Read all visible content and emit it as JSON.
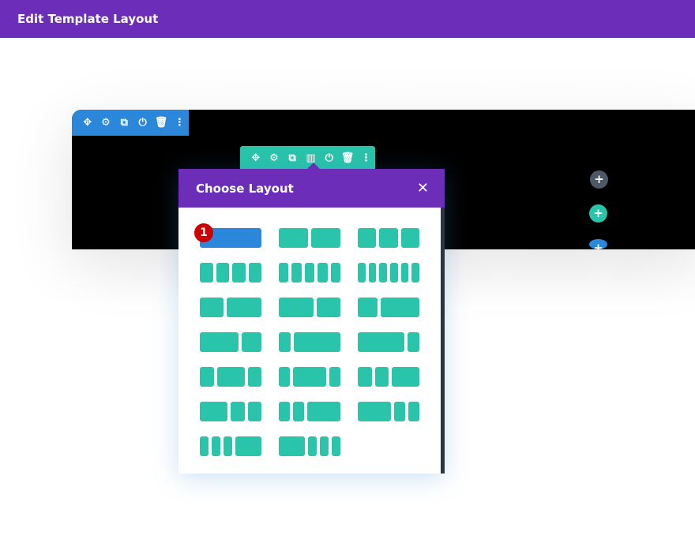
{
  "header": {
    "title": "Edit Template Layout"
  },
  "section_toolbar": {
    "icons": [
      "✥",
      "⚙",
      "⧉",
      "⏻",
      "🗑",
      "⋮"
    ],
    "color": "#2b87da"
  },
  "row_toolbar": {
    "icons": [
      "✥",
      "⚙",
      "⧉",
      "▥",
      "⏻",
      "🗑",
      "⋮"
    ],
    "color": "#29c4a9"
  },
  "modal": {
    "title": "Choose Layout",
    "close": "✕",
    "selected_index": 0,
    "badge": "1",
    "layouts": [
      [
        1
      ],
      [
        1,
        1
      ],
      [
        1,
        1,
        1
      ],
      [
        1,
        1,
        1,
        1
      ],
      [
        1,
        1,
        1,
        1,
        1
      ],
      [
        1,
        1,
        1,
        1,
        1,
        1
      ],
      [
        2,
        3
      ],
      [
        3,
        2
      ],
      [
        1,
        2
      ],
      [
        2,
        1
      ],
      [
        1,
        4
      ],
      [
        4,
        1
      ],
      [
        1,
        2,
        1
      ],
      [
        1,
        3,
        1
      ],
      [
        1,
        1,
        2
      ],
      [
        2,
        1,
        1
      ],
      [
        1,
        1,
        3
      ],
      [
        3,
        1,
        1
      ],
      [
        1,
        1,
        1,
        3
      ],
      [
        3,
        1,
        1,
        1
      ]
    ]
  },
  "add_buttons": [
    {
      "label": "+",
      "color": "#4c5866"
    },
    {
      "label": "+",
      "color": "#29c4a9"
    },
    {
      "label": "+",
      "color": "#2b87da"
    }
  ]
}
